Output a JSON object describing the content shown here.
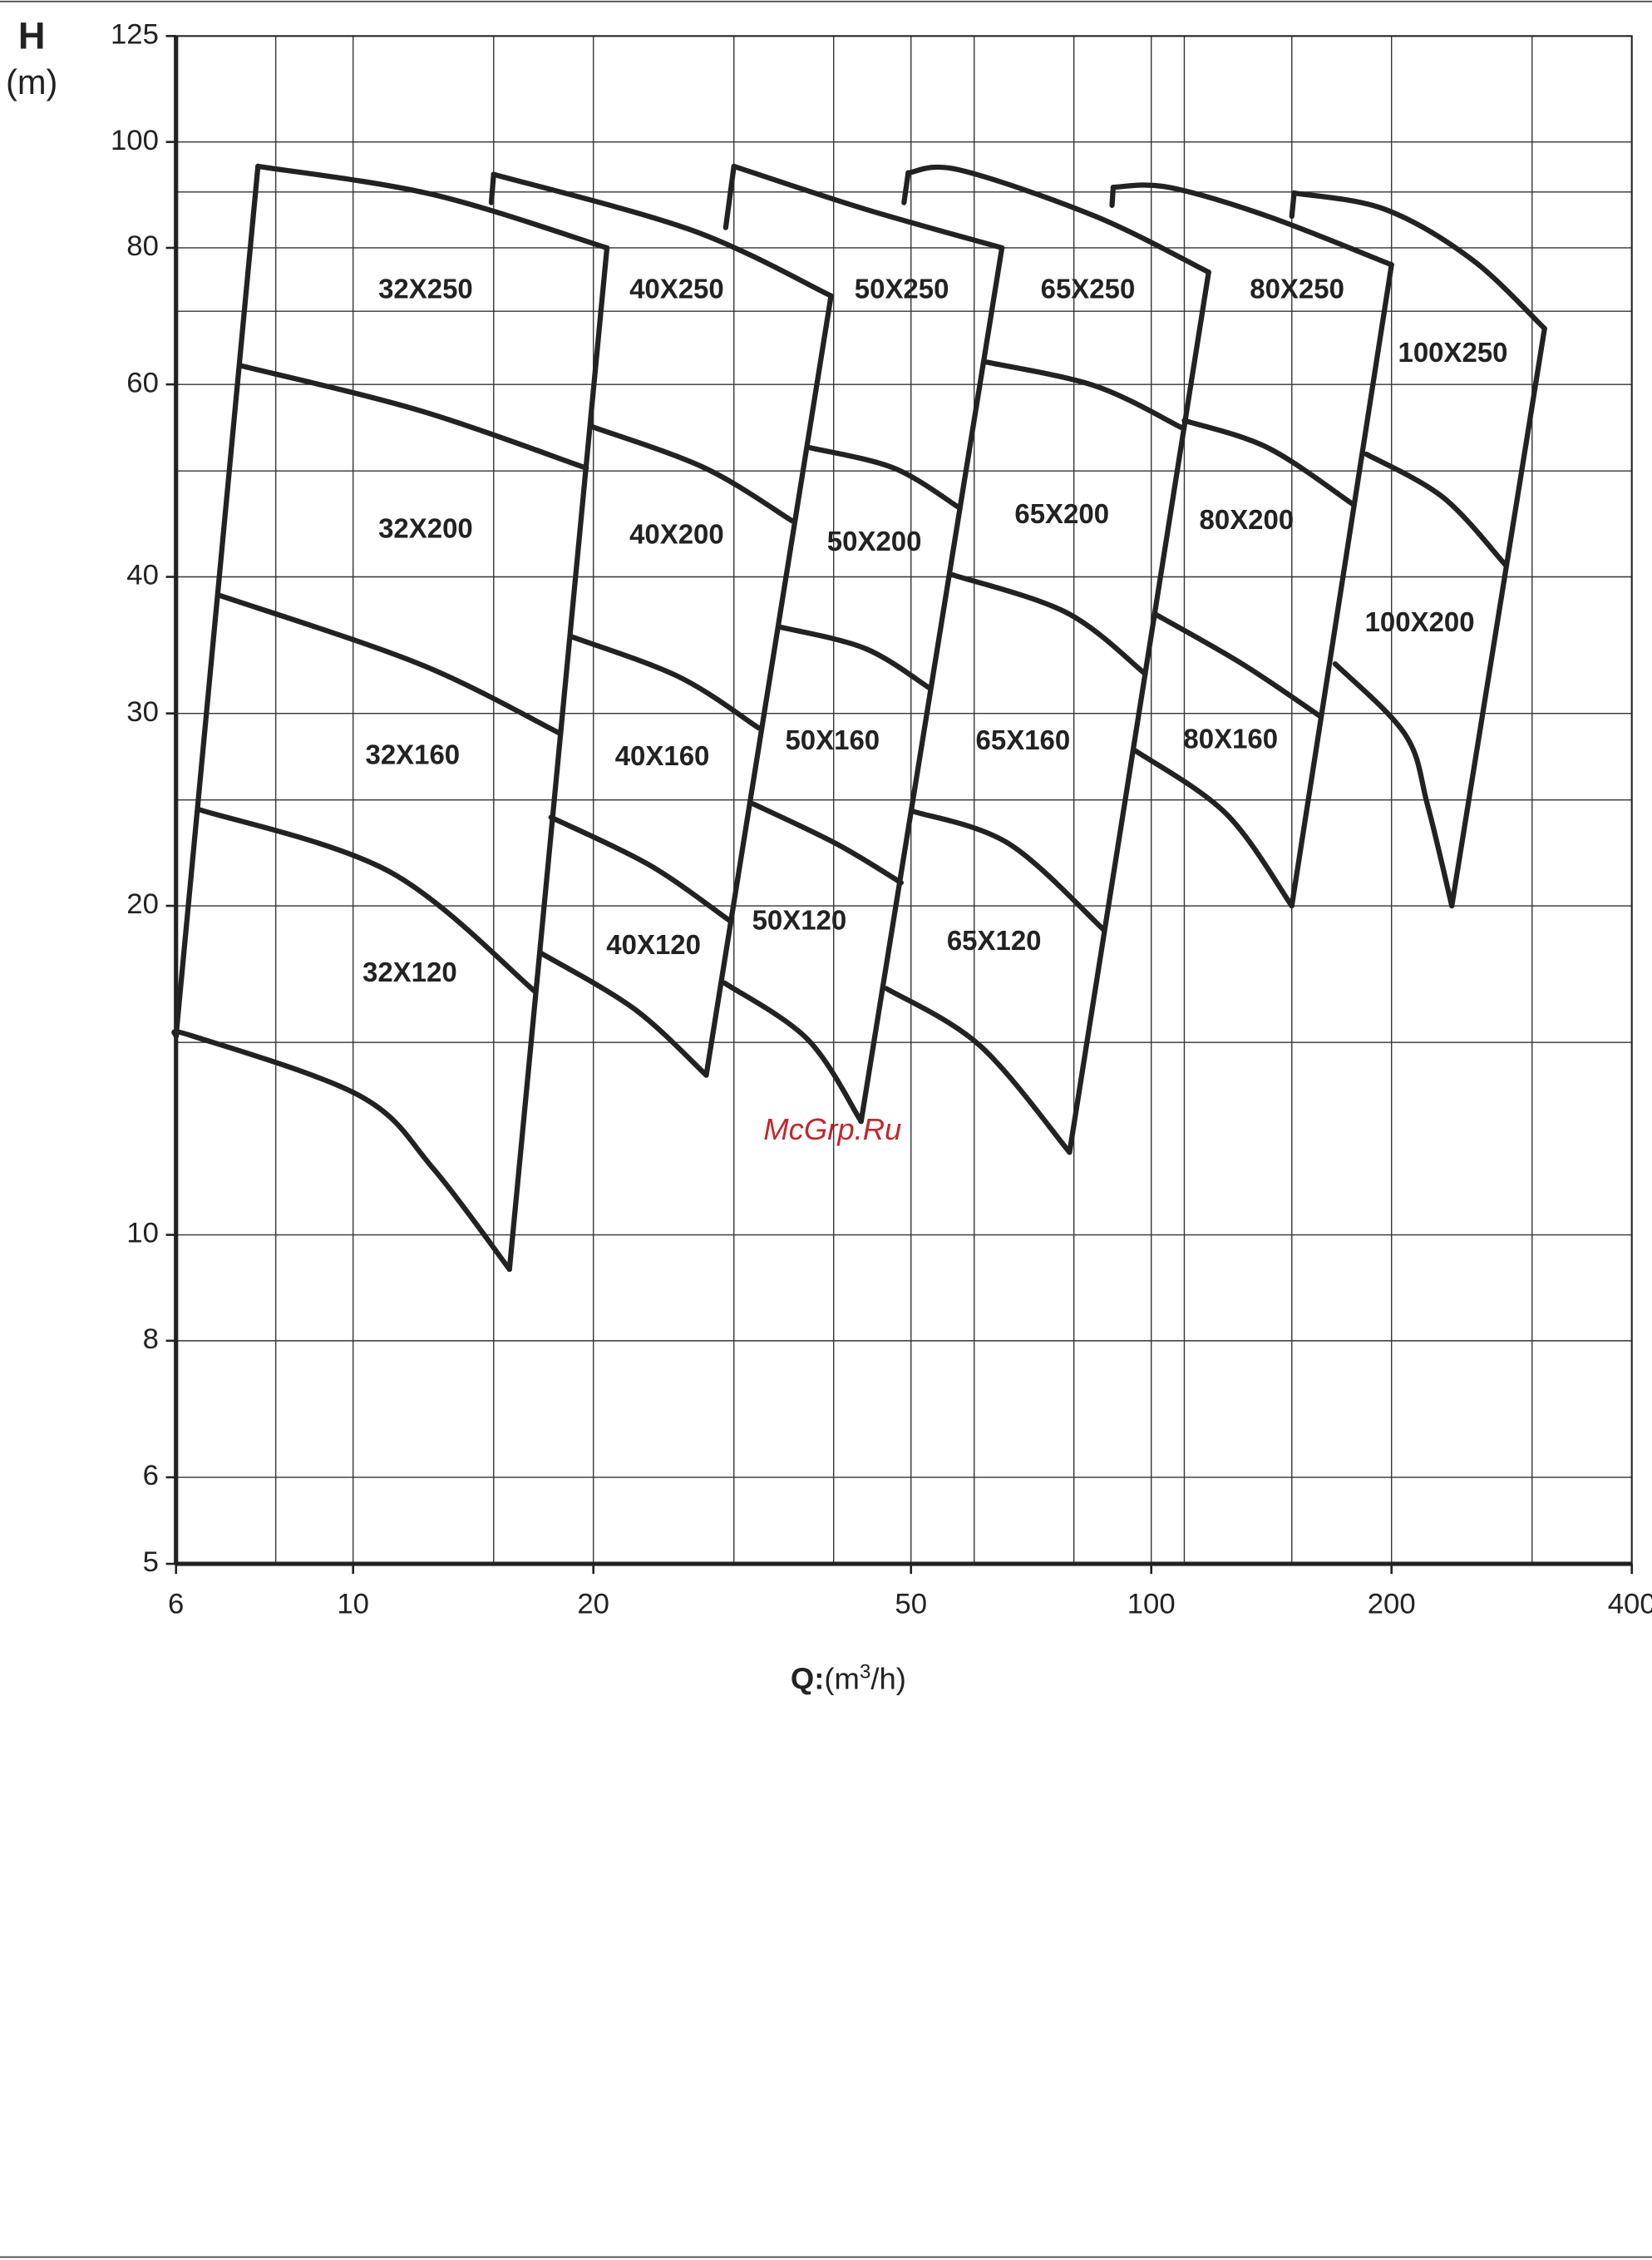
{
  "chart_data": {
    "type": "line",
    "y_label": "H",
    "y_unit": "(m)",
    "x_label_parts": [
      "Q:",
      "(m",
      "3",
      "/h)"
    ],
    "watermark": "McGrp.Ru",
    "xlog": true,
    "ylog": true,
    "xlim": [
      6,
      400
    ],
    "ylim": [
      5,
      125
    ],
    "xticks": [
      6,
      10,
      20,
      50,
      100,
      200,
      400
    ],
    "yticks": [
      5,
      6,
      8,
      10,
      20,
      30,
      40,
      60,
      80,
      100,
      125
    ],
    "xgrid": [
      8,
      10,
      15,
      20,
      30,
      40,
      50,
      60,
      80,
      100,
      110,
      150,
      200,
      300
    ],
    "ygrid": [
      6,
      8,
      10,
      15,
      20,
      25,
      30,
      40,
      50,
      60,
      70,
      80,
      90,
      100
    ],
    "color": "#222222",
    "labels": [
      "32X250",
      "40X250",
      "50X250",
      "65X250",
      "80X250",
      "100X250",
      "32X200",
      "40X200",
      "50X200",
      "65X200",
      "80X200",
      "100X200",
      "32X160",
      "40X160",
      "50X160",
      "65X160",
      "80X160",
      "32X120",
      "40X120",
      "50X120",
      "65X120"
    ],
    "series": [
      {
        "x": [
          7.6,
          12.6,
          20.8
        ],
        "y": [
          95,
          89.5,
          80
        ]
      },
      {
        "x": [
          7.24,
          12.1,
          19.6
        ],
        "y": [
          62.4,
          56.8,
          50.3
        ]
      },
      {
        "x": [
          6.78,
          12.1,
          18.1
        ],
        "y": [
          38.5,
          33.3,
          28.8
        ]
      },
      {
        "x": [
          6.41,
          11.1,
          16.9
        ],
        "y": [
          24.5,
          21.5,
          16.7
        ]
      },
      {
        "x": [
          6,
          6.3,
          10.2,
          12.6,
          15.7
        ],
        "y": [
          15.2,
          15.2,
          13.4,
          11.5,
          9.3
        ]
      },
      {
        "x": [
          6,
          7.6
        ],
        "y": [
          15.2,
          95
        ]
      },
      {
        "x": [
          20.8,
          15.7
        ],
        "y": [
          80,
          9.3
        ]
      },
      {
        "x": [
          15.0,
          14.9
        ],
        "y": [
          93.4,
          88
        ]
      },
      {
        "x": [
          15.0,
          26.6,
          39.7
        ],
        "y": [
          93.4,
          83,
          72.3
        ]
      },
      {
        "x": [
          19.9,
          27.6,
          35.5
        ],
        "y": [
          54.9,
          50.3,
          45
        ]
      },
      {
        "x": [
          18.7,
          25.6,
          32.2
        ],
        "y": [
          35.3,
          32.4,
          29.1
        ]
      },
      {
        "x": [
          17.7,
          23.5,
          29.6
        ],
        "y": [
          24.1,
          21.8,
          19.4
        ]
      },
      {
        "x": [
          17.2,
          22.5,
          27.7
        ],
        "y": [
          18.1,
          16.1,
          14.0
        ]
      },
      {
        "x": [
          39.7,
          27.7
        ],
        "y": [
          72.3,
          14.0
        ]
      },
      {
        "x": [
          30,
          29.3
        ],
        "y": [
          95,
          83.5
        ]
      },
      {
        "x": [
          30,
          43.8,
          65
        ],
        "y": [
          95,
          86.8,
          80
        ]
      },
      {
        "x": [
          37.4,
          47.6,
          57.4
        ],
        "y": [
          52.5,
          50.3,
          46.3
        ]
      },
      {
        "x": [
          34.2,
          43.8,
          52.9
        ],
        "y": [
          36,
          34.4,
          31.6
        ]
      },
      {
        "x": [
          31.7,
          40.3,
          48.6
        ],
        "y": [
          24.8,
          22.8,
          21.0
        ]
      },
      {
        "x": [
          29.2,
          37.1,
          43.3
        ],
        "y": [
          17,
          15.1,
          12.7
        ]
      },
      {
        "x": [
          65,
          43.3
        ],
        "y": [
          80,
          12.7
        ]
      },
      {
        "x": [
          49.6,
          49.0
        ],
        "y": [
          93.7,
          88
        ]
      },
      {
        "x": [
          49.6,
          57.4,
          85.1,
          118
        ],
        "y": [
          93.7,
          94.3,
          85.5,
          76
        ]
      },
      {
        "x": [
          62.1,
          85.1,
          109
        ],
        "y": [
          62.9,
          59.8,
          54.8
        ]
      },
      {
        "x": [
          56.2,
          78.3,
          98.3
        ],
        "y": [
          40.2,
          37.1,
          32.6
        ]
      },
      {
        "x": [
          50.4,
          66.3,
          87.3
        ],
        "y": [
          24.4,
          22.8,
          19.0
        ]
      },
      {
        "x": [
          46.6,
          61,
          79
        ],
        "y": [
          16.8,
          14.9,
          11.9
        ]
      },
      {
        "x": [
          118,
          79
        ],
        "y": [
          76,
          11.9
        ]
      },
      {
        "x": [
          89.6,
          89.3
        ],
        "y": [
          90.9,
          87.5
        ]
      },
      {
        "x": [
          89.6,
          105,
          140,
          200
        ],
        "y": [
          90.9,
          90.9,
          85.5,
          77.2
        ]
      },
      {
        "x": [
          110,
          140,
          179
        ],
        "y": [
          55.6,
          52.5,
          46.6
        ]
      },
      {
        "x": [
          101,
          130,
          163
        ],
        "y": [
          37,
          33.3,
          29.8
        ]
      },
      {
        "x": [
          95,
          124,
          150
        ],
        "y": [
          27.8,
          24.3,
          20
        ]
      },
      {
        "x": [
          200,
          150
        ],
        "y": [
          77.2,
          20
        ]
      },
      {
        "x": [
          151,
          150
        ],
        "y": [
          89.8,
          85.5
        ]
      },
      {
        "x": [
          151,
          196,
          252,
          311
        ],
        "y": [
          89.8,
          86.8,
          78.1,
          67.5
        ]
      },
      {
        "x": [
          186,
          232,
          278
        ],
        "y": [
          51.8,
          47.3,
          41
        ]
      },
      {
        "x": [
          170,
          208,
          222,
          238
        ],
        "y": [
          33.3,
          28.7,
          24.7,
          20
        ]
      },
      {
        "x": [
          311,
          238
        ],
        "y": [
          67.5,
          20
        ]
      }
    ]
  }
}
